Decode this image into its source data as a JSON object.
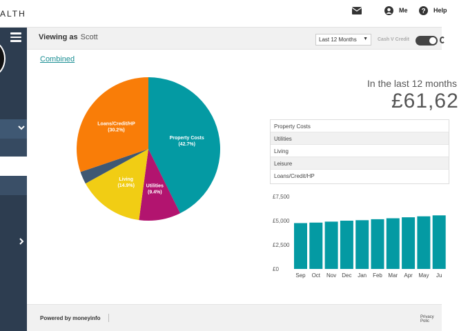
{
  "topbar": {
    "brand": "ALTH",
    "mail_icon": "envelope-icon",
    "me_label": "Me",
    "me_icon": "user-icon",
    "help_label": "Help",
    "help_icon": "question-icon"
  },
  "sidebar": {
    "menu_icon": "hamburger-icon",
    "chevron_down": "chevron-down-icon",
    "chevron_right": "chevron-right-icon"
  },
  "subheader": {
    "viewing_label": "Viewing as",
    "viewing_name": "Scott",
    "period_value": "Last 12 Months",
    "toggle_label": "Cash V Credit"
  },
  "combined_link": "Combined",
  "summary": {
    "intro": "In the last 12 months",
    "total": "£61,62"
  },
  "colors": {
    "teal": "#049aa3",
    "magenta": "#b2146f",
    "yellow": "#f1cd14",
    "slate": "#3f5873",
    "orange": "#f97d08"
  },
  "chart_data": [
    {
      "type": "pie",
      "slices": [
        {
          "label": "Property Costs",
          "percent_label": "(42.7%)",
          "value": 42.7,
          "color": "#049aa3"
        },
        {
          "label": "Utilities",
          "percent_label": "(9.4%)",
          "value": 9.4,
          "color": "#b2146f"
        },
        {
          "label": "Living",
          "percent_label": "(14.9%)",
          "value": 14.9,
          "color": "#f1cd14"
        },
        {
          "label": "Leisure",
          "percent_label": "",
          "value": 2.8,
          "color": "#3f5873"
        },
        {
          "label": "Loans/Credit/HP",
          "percent_label": "(30.2%)",
          "value": 30.2,
          "color": "#f97d08"
        }
      ]
    },
    {
      "type": "bar",
      "categories": [
        "Sep",
        "Oct",
        "Nov",
        "Dec",
        "Jan",
        "Feb",
        "Mar",
        "Apr",
        "May",
        "Ju"
      ],
      "values": [
        4750,
        4800,
        4900,
        5000,
        5050,
        5150,
        5250,
        5350,
        5450,
        5550
      ],
      "ylim": [
        0,
        7500
      ],
      "yticks": [
        0,
        2500,
        5000,
        7500
      ],
      "ytick_labels": [
        "£0",
        "£2,500",
        "£5,000",
        "£7,500"
      ],
      "color": "#049aa3"
    }
  ],
  "categories_list": [
    "Property Costs",
    "Utilities",
    "Living",
    "Leisure",
    "Loans/Credit/HP"
  ],
  "footer": {
    "powered": "Powered by moneyinfo",
    "privacy": "Privacy Polic"
  }
}
